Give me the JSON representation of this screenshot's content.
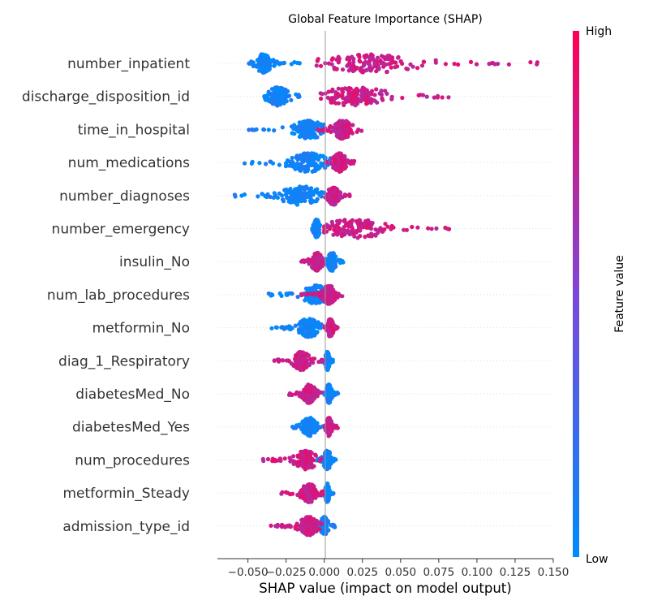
{
  "chart_data": {
    "type": "scatter",
    "subtype": "shap-beeswarm",
    "title": "Global Feature Importance (SHAP)",
    "xlabel": "SHAP value (impact on model output)",
    "xlim": [
      -0.07,
      0.15
    ],
    "xticks": [
      -0.05,
      -0.025,
      0.0,
      0.025,
      0.05,
      0.075,
      0.1,
      0.125,
      0.15
    ],
    "xtick_labels": [
      "−0.050",
      "−0.025",
      "0.000",
      "0.025",
      "0.050",
      "0.075",
      "0.100",
      "0.125",
      "0.150"
    ],
    "colorbar": {
      "label": "Feature value",
      "high_label": "High",
      "low_label": "Low",
      "low_color": "#008bfb",
      "mid_color": "#7c48d8",
      "high_color": "#ff0052"
    },
    "grid": false,
    "features": [
      {
        "name": "number_inpatient",
        "low": {
          "center": -0.04,
          "min": -0.05,
          "max": -0.015,
          "spread": 0.006
        },
        "high": {
          "center": 0.03,
          "min": -0.005,
          "max": 0.14,
          "spread": 0.04
        }
      },
      {
        "name": "discharge_disposition_id",
        "low": {
          "center": -0.03,
          "min": -0.04,
          "max": -0.015,
          "spread": 0.008
        },
        "high": {
          "center": 0.02,
          "min": -0.005,
          "max": 0.085,
          "spread": 0.025
        }
      },
      {
        "name": "time_in_hospital",
        "low": {
          "center": -0.01,
          "min": -0.05,
          "max": 0.015,
          "spread": 0.012
        },
        "high": {
          "center": 0.012,
          "min": -0.005,
          "max": 0.025,
          "spread": 0.007
        }
      },
      {
        "name": "num_medications",
        "low": {
          "center": -0.01,
          "min": -0.057,
          "max": 0.01,
          "spread": 0.015
        },
        "high": {
          "center": 0.01,
          "min": 0.0,
          "max": 0.02,
          "spread": 0.005
        }
      },
      {
        "name": "number_diagnoses",
        "low": {
          "center": -0.015,
          "min": -0.06,
          "max": 0.005,
          "spread": 0.015
        },
        "high": {
          "center": 0.006,
          "min": 0.0,
          "max": 0.017,
          "spread": 0.004
        }
      },
      {
        "name": "number_emergency",
        "low": {
          "center": -0.005,
          "min": -0.008,
          "max": -0.002,
          "spread": 0.002
        },
        "high": {
          "center": 0.02,
          "min": 0.0,
          "max": 0.085,
          "spread": 0.025
        }
      },
      {
        "name": "insulin_No",
        "low": {
          "center": 0.005,
          "min": 0.0,
          "max": 0.013,
          "spread": 0.003
        },
        "high": {
          "center": -0.005,
          "min": -0.015,
          "max": 0.0,
          "spread": 0.004
        }
      },
      {
        "name": "num_lab_procedures",
        "low": {
          "center": -0.005,
          "min": -0.04,
          "max": 0.01,
          "spread": 0.01
        },
        "high": {
          "center": 0.003,
          "min": -0.015,
          "max": 0.012,
          "spread": 0.005
        }
      },
      {
        "name": "metformin_No",
        "low": {
          "center": -0.01,
          "min": -0.035,
          "max": 0.0,
          "spread": 0.008
        },
        "high": {
          "center": 0.004,
          "min": 0.0,
          "max": 0.009,
          "spread": 0.002
        }
      },
      {
        "name": "diag_1_Respiratory",
        "low": {
          "center": 0.002,
          "min": 0.0,
          "max": 0.006,
          "spread": 0.0015
        },
        "high": {
          "center": -0.015,
          "min": -0.033,
          "max": 0.0,
          "spread": 0.006
        }
      },
      {
        "name": "diabetesMed_No",
        "low": {
          "center": 0.003,
          "min": 0.0,
          "max": 0.009,
          "spread": 0.002
        },
        "high": {
          "center": -0.01,
          "min": -0.023,
          "max": 0.0,
          "spread": 0.005
        }
      },
      {
        "name": "diabetesMed_Yes",
        "low": {
          "center": -0.01,
          "min": -0.022,
          "max": 0.0,
          "spread": 0.005
        },
        "high": {
          "center": 0.003,
          "min": 0.0,
          "max": 0.009,
          "spread": 0.002
        }
      },
      {
        "name": "num_procedures",
        "low": {
          "center": 0.002,
          "min": -0.005,
          "max": 0.008,
          "spread": 0.003
        },
        "high": {
          "center": -0.012,
          "min": -0.042,
          "max": 0.0,
          "spread": 0.008
        }
      },
      {
        "name": "metformin_Steady",
        "low": {
          "center": 0.002,
          "min": 0.0,
          "max": 0.006,
          "spread": 0.0015
        },
        "high": {
          "center": -0.01,
          "min": -0.03,
          "max": 0.0,
          "spread": 0.006
        }
      },
      {
        "name": "admission_type_id",
        "low": {
          "center": 0.0,
          "min": -0.01,
          "max": 0.008,
          "spread": 0.003
        },
        "high": {
          "center": -0.01,
          "min": -0.035,
          "max": 0.0,
          "spread": 0.007
        }
      }
    ]
  }
}
